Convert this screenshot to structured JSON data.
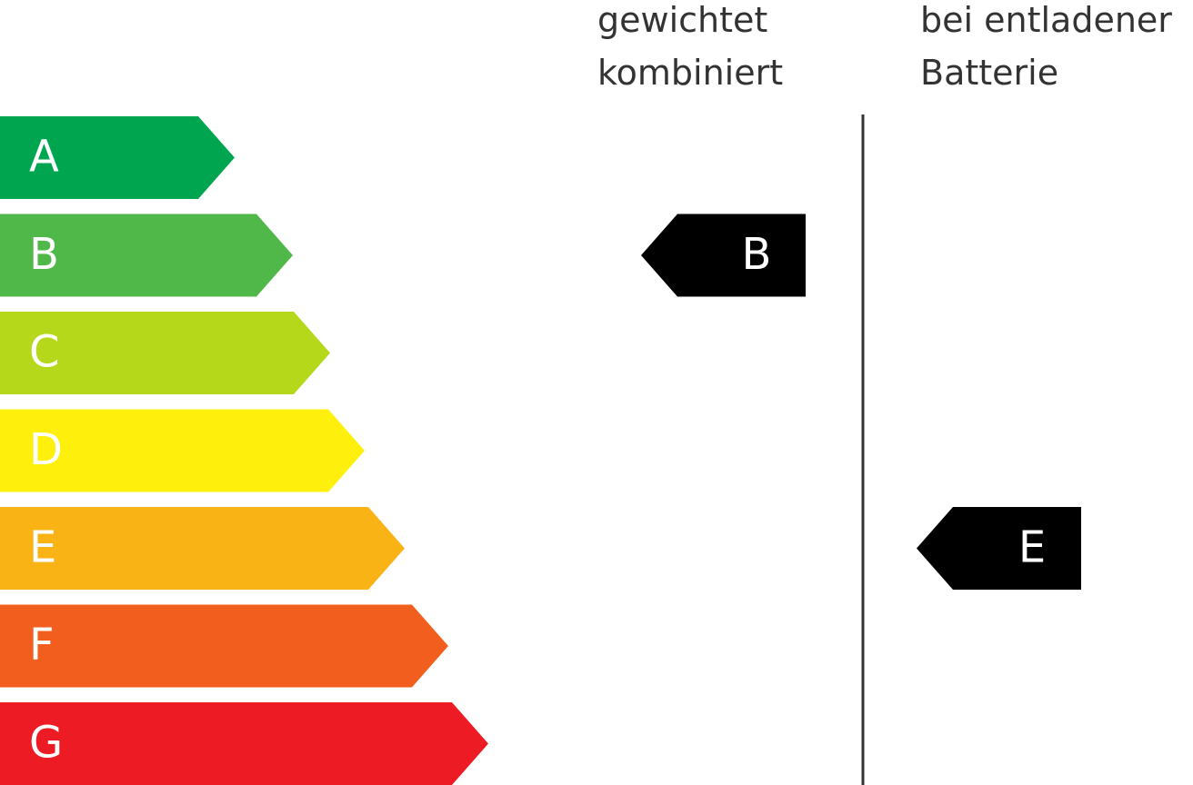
{
  "classes": [
    {
      "label": "A",
      "color": "#00a54f"
    },
    {
      "label": "B",
      "color": "#50b848"
    },
    {
      "label": "C",
      "color": "#b5d81b"
    },
    {
      "label": "D",
      "color": "#fef00c"
    },
    {
      "label": "E",
      "color": "#f9b314"
    },
    {
      "label": "F",
      "color": "#f15e1e"
    },
    {
      "label": "G",
      "color": "#ed1c24"
    }
  ],
  "columns": [
    {
      "title_lines": [
        "gewichtet",
        "kombiniert"
      ],
      "rating": "B"
    },
    {
      "title_lines": [
        "bei entladener",
        "Batterie"
      ],
      "rating": "E"
    }
  ]
}
